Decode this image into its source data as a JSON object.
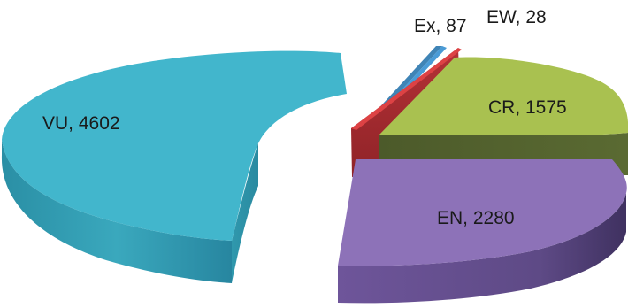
{
  "chart_data": {
    "type": "pie",
    "style": "3d-exploded",
    "slices": [
      {
        "name": "Ex",
        "value": 87,
        "label": "Ex, 87",
        "color": "#4a9bd6"
      },
      {
        "name": "EW",
        "value": 28,
        "label": "EW, 28",
        "color": "#c0393b"
      },
      {
        "name": "CR",
        "value": 1575,
        "label": "CR, 1575",
        "color": "#a9c150"
      },
      {
        "name": "EN",
        "value": 2280,
        "label": "EN, 2280",
        "color": "#8d72b8"
      },
      {
        "name": "VU",
        "value": 4602,
        "label": "VU, 4602",
        "color": "#42b6cc"
      }
    ]
  }
}
